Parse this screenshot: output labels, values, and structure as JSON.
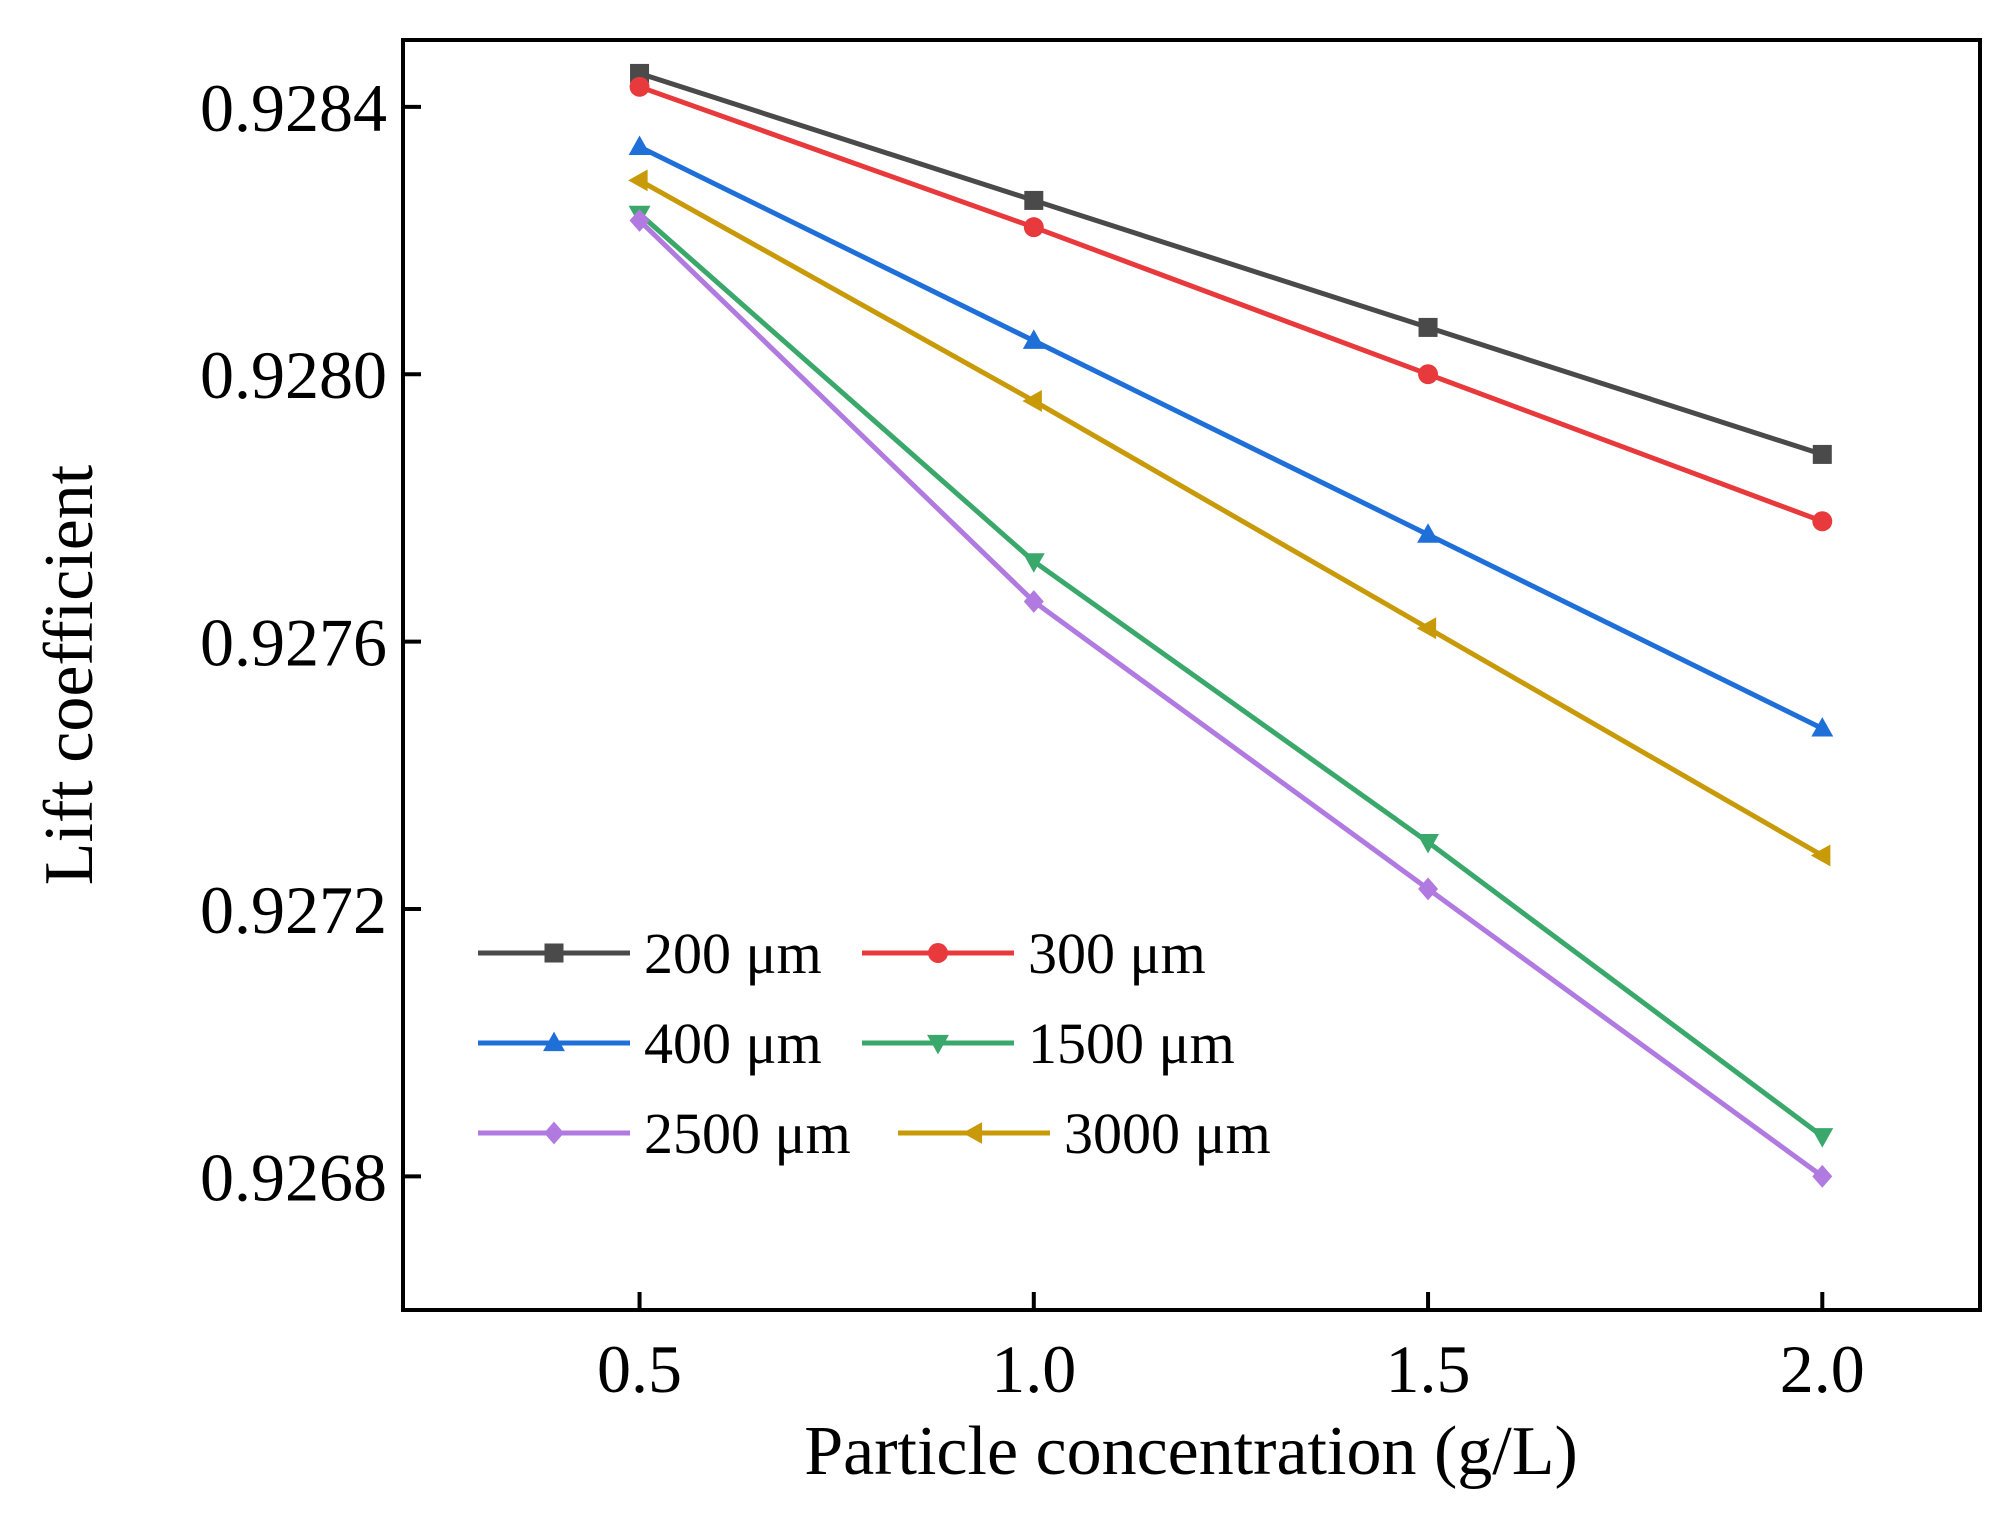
{
  "chart_data": {
    "type": "line",
    "title": "",
    "xlabel": "Particle concentration (g/L)",
    "ylabel": "Lift coefficient",
    "x": [
      0.5,
      1.0,
      1.5,
      2.0
    ],
    "xticks": [
      0.5,
      1.0,
      1.5,
      2.0
    ],
    "xtick_labels": [
      "0.5",
      "1.0",
      "1.5",
      "2.0"
    ],
    "xlim": [
      0.2,
      2.2
    ],
    "yticks": [
      0.9268,
      0.9272,
      0.9276,
      0.928,
      0.9284
    ],
    "ytick_labels": [
      "0.9268",
      "0.9272",
      "0.9276",
      "0.9280",
      "0.9284"
    ],
    "ylim": [
      0.9266,
      0.9285
    ],
    "grid": false,
    "legend_position": "bottom-left",
    "series": [
      {
        "name": "200 μm",
        "color": "#4a4a4a",
        "marker": "square",
        "values": [
          0.92845,
          0.92826,
          0.92807,
          0.92788
        ]
      },
      {
        "name": "300 μm",
        "color": "#e8393c",
        "marker": "circle",
        "values": [
          0.92843,
          0.92822,
          0.928,
          0.92778
        ]
      },
      {
        "name": "400 μm",
        "color": "#1f6fd9",
        "marker": "triangle-up",
        "values": [
          0.92834,
          0.92805,
          0.92776,
          0.92747
        ]
      },
      {
        "name": "1500 μm",
        "color": "#3aa86b",
        "marker": "triangle-down",
        "values": [
          0.92824,
          0.92772,
          0.9273,
          0.92686
        ]
      },
      {
        "name": "2500 μm",
        "color": "#b07ae0",
        "marker": "diamond",
        "values": [
          0.92823,
          0.92766,
          0.92723,
          0.9268
        ]
      },
      {
        "name": "3000 μm",
        "color": "#c99a08",
        "marker": "triangle-left",
        "values": [
          0.92829,
          0.92796,
          0.92762,
          0.92728
        ]
      }
    ]
  }
}
